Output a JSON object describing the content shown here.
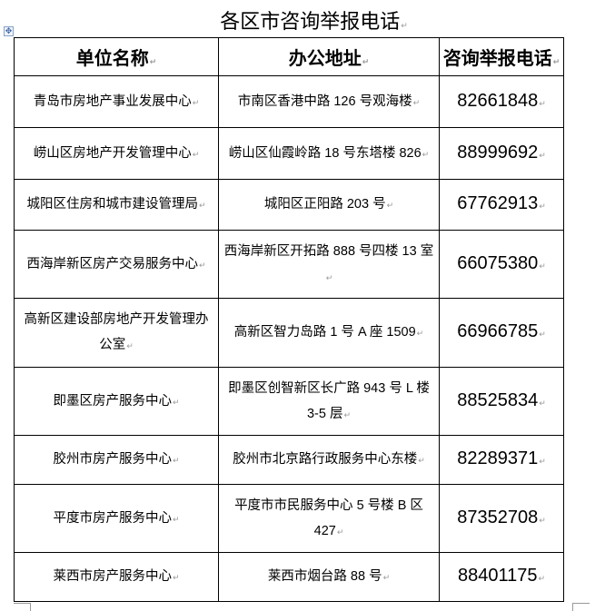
{
  "title": "各区市咨询举报电话",
  "headers": [
    "单位名称",
    "办公地址",
    "咨询举报电话"
  ],
  "rows": [
    {
      "name": "青岛市房地产事业发展中心",
      "address": "市南区香港中路 126 号观海楼",
      "phone": "82661848"
    },
    {
      "name": "崂山区房地产开发管理中心",
      "address": "崂山区仙霞岭路 18 号东塔楼 826",
      "phone": "88999692"
    },
    {
      "name": "城阳区住房和城市建设管理局",
      "address": "城阳区正阳路 203 号",
      "phone": "67762913"
    },
    {
      "name": "西海岸新区房产交易服务中心",
      "address": "西海岸新区开拓路 888 号四楼 13 室",
      "phone": "66075380"
    },
    {
      "name": "高新区建设部房地产开发管理办公室",
      "address": "高新区智力岛路 1 号 A 座 1509",
      "phone": "66966785"
    },
    {
      "name": "即墨区房产服务中心",
      "address": "即墨区创智新区长广路 943 号 L 楼 3-5 层",
      "phone": "88525834"
    },
    {
      "name": "胶州市房产服务中心",
      "address": "胶州市北京路行政服务中心东楼",
      "phone": "82289371"
    },
    {
      "name": "平度市房产服务中心",
      "address": "平度市市民服务中心 5 号楼 B 区 427",
      "phone": "87352708"
    },
    {
      "name": "莱西市房产服务中心",
      "address": "莱西市烟台路 88 号",
      "phone": "88401175"
    }
  ]
}
